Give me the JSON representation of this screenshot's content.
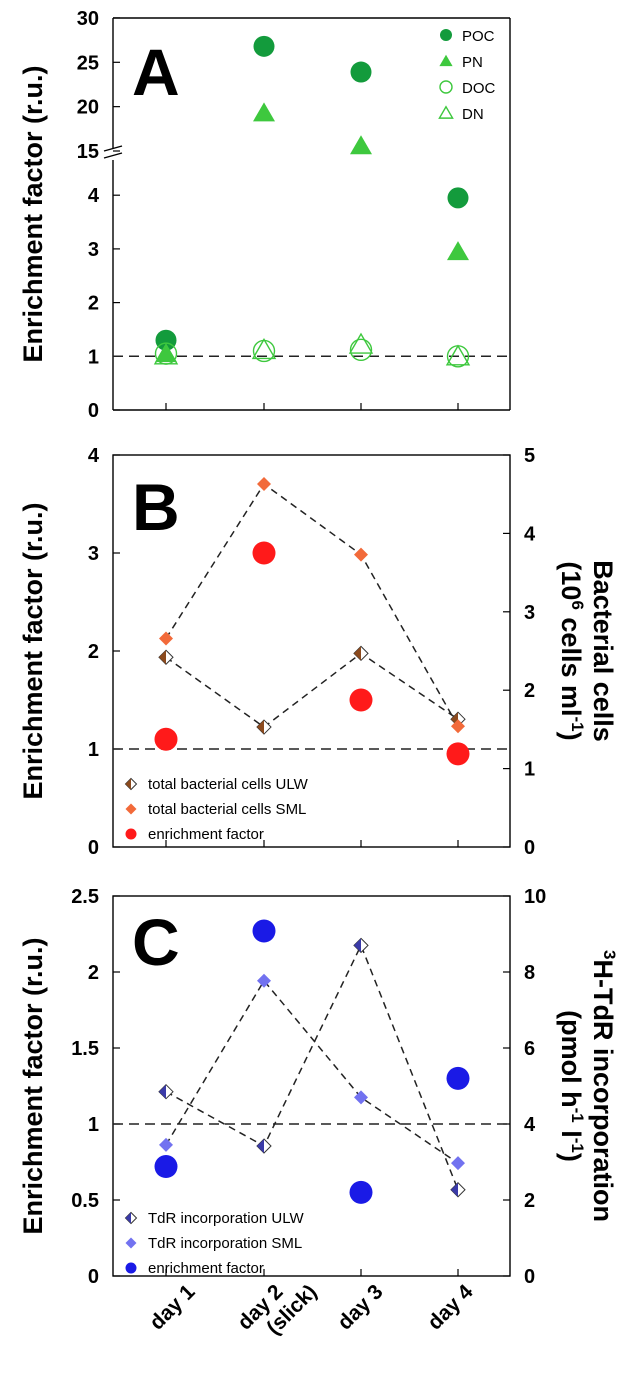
{
  "chart_data": [
    {
      "panel": "A",
      "type": "scatter",
      "x_categories": [
        "day 1",
        "day 2\n(slick)",
        "day 3",
        "day 4"
      ],
      "ylabel": "Enrichment factor (r.u.)",
      "y_axis_break": [
        4.5,
        15
      ],
      "ylim_lower": [
        0,
        4.5
      ],
      "ylim_upper": [
        15,
        30
      ],
      "yticks": [
        0,
        1,
        2,
        3,
        4,
        15,
        20,
        25,
        30
      ],
      "reference_line_y": 1,
      "colors": {
        "dark_green": "#139b3c",
        "light_green": "#3ec83e"
      },
      "series": [
        {
          "name": "POC",
          "marker": "circle-filled",
          "color": "#139b3c",
          "values": [
            1.3,
            26.8,
            23.9,
            3.95
          ]
        },
        {
          "name": "PN",
          "marker": "triangle-filled",
          "color": "#3ec83e",
          "values": [
            1.05,
            19.3,
            15.6,
            2.95
          ]
        },
        {
          "name": "DOC",
          "marker": "circle-open",
          "color": "#3ec83e",
          "values": [
            1.05,
            1.1,
            1.12,
            1.0
          ]
        },
        {
          "name": "DN",
          "marker": "triangle-open",
          "color": "#3ec83e",
          "values": [
            1.02,
            1.12,
            1.22,
            1.0
          ]
        }
      ],
      "legend_position": "top-right"
    },
    {
      "panel": "B",
      "type": "scatter",
      "x_categories": [
        "day 1",
        "day 2\n(slick)",
        "day 3",
        "day 4"
      ],
      "ylabel": "Enrichment factor (r.u.)",
      "ylabel_right": [
        "Bacterial cells",
        "(10⁶ cells ml⁻¹)"
      ],
      "ylim": [
        0,
        4
      ],
      "yticks": [
        0,
        1,
        2,
        3,
        4
      ],
      "ylim_right": [
        0,
        5
      ],
      "yticks_right": [
        0,
        1,
        2,
        3,
        4,
        5
      ],
      "reference_line_y": 1,
      "series": [
        {
          "name": "total bacterial cells ULW",
          "axis": "right",
          "marker": "diamond-open",
          "color": "#8b4a1e",
          "connected": true,
          "values": [
            2.42,
            1.53,
            2.47,
            1.63
          ]
        },
        {
          "name": "total bacterial cells SML",
          "axis": "right",
          "marker": "diamond-filled",
          "color": "#f26a3a",
          "connected": true,
          "values": [
            2.66,
            4.63,
            3.73,
            1.54
          ]
        },
        {
          "name": "enrichment factor",
          "axis": "left",
          "marker": "circle-filled",
          "color": "#ff1a1a",
          "values": [
            1.1,
            3.0,
            1.5,
            0.95
          ]
        }
      ],
      "legend_position": "bottom-left"
    },
    {
      "panel": "C",
      "type": "scatter",
      "x_categories": [
        "day 1",
        "day 2\n(slick)",
        "day 3",
        "day 4"
      ],
      "ylabel": "Enrichment factor (r.u.)",
      "ylabel_right": [
        "³H-TdR incorporation",
        "(pmol h⁻¹ l⁻¹)"
      ],
      "ylim": [
        0,
        2.5
      ],
      "yticks": [
        0,
        0.5,
        1,
        1.5,
        2,
        2.5
      ],
      "ylim_right": [
        0,
        10
      ],
      "yticks_right": [
        0,
        2,
        4,
        6,
        8,
        10
      ],
      "reference_line_y": 1,
      "series": [
        {
          "name": "TdR incorporation ULW",
          "axis": "right",
          "marker": "diamond-open",
          "color": "#3a3aa8",
          "connected": true,
          "values": [
            4.85,
            3.42,
            8.7,
            2.27
          ]
        },
        {
          "name": "TdR incorporation SML",
          "axis": "right",
          "marker": "diamond-filled",
          "color": "#7272f0",
          "connected": true,
          "values": [
            3.45,
            7.77,
            4.7,
            2.97
          ]
        },
        {
          "name": "enrichment factor",
          "axis": "left",
          "marker": "circle-filled",
          "color": "#1a1ae6",
          "values": [
            0.72,
            2.27,
            0.55,
            1.3
          ]
        }
      ],
      "legend_position": "bottom-left"
    }
  ],
  "labels": {
    "panelA": "A",
    "panelB": "B",
    "panelC": "C",
    "ylab_left": "Enrichment factor (r.u.)",
    "ylabB_right_line1": "Bacterial cells",
    "ylabC_right_line2": "(pmol h",
    "x_day1": "day 1",
    "x_day2_line1": "day 2",
    "x_day2_line2": "(slick)",
    "x_day3": "day 3",
    "x_day4": "day 4"
  }
}
